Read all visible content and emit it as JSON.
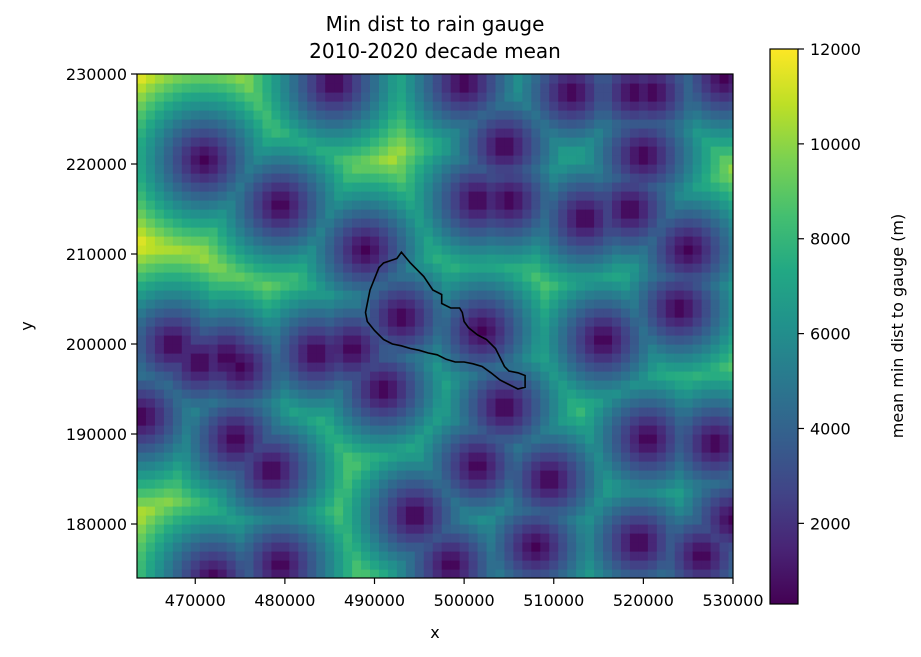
{
  "chart_data": {
    "type": "heatmap",
    "title": "Min dist to rain gauge",
    "subtitle": "2010-2020 decade mean",
    "xlabel": "x",
    "ylabel": "y",
    "xlim": [
      463500,
      530000
    ],
    "ylim": [
      174000,
      230000
    ],
    "xticks": [
      470000,
      480000,
      490000,
      500000,
      510000,
      520000,
      530000
    ],
    "yticks": [
      180000,
      190000,
      200000,
      210000,
      220000,
      230000
    ],
    "colorbar": {
      "label": "mean min dist to gauge (m)",
      "range": [
        300,
        12000
      ],
      "ticks": [
        2000,
        4000,
        6000,
        8000,
        10000,
        12000
      ],
      "colormap": "viridis"
    },
    "grid": false,
    "cell_size": 1000,
    "gauges": [
      [
        471000,
        220500
      ],
      [
        485500,
        229000
      ],
      [
        500000,
        229000
      ],
      [
        512000,
        228000
      ],
      [
        519000,
        228000
      ],
      [
        521000,
        228000
      ],
      [
        529000,
        229500
      ],
      [
        479500,
        215500
      ],
      [
        501500,
        216000
      ],
      [
        504500,
        222000
      ],
      [
        505000,
        216000
      ],
      [
        513500,
        214000
      ],
      [
        518500,
        215000
      ],
      [
        520000,
        221000
      ],
      [
        489000,
        210500
      ],
      [
        525000,
        210500
      ],
      [
        524000,
        204000
      ],
      [
        515500,
        200500
      ],
      [
        502000,
        201500
      ],
      [
        493000,
        203000
      ],
      [
        467500,
        200000
      ],
      [
        470500,
        198000
      ],
      [
        473500,
        198500
      ],
      [
        475000,
        197500
      ],
      [
        483500,
        199000
      ],
      [
        487500,
        199500
      ],
      [
        491000,
        195000
      ],
      [
        504500,
        193000
      ],
      [
        464000,
        192000
      ],
      [
        474500,
        189500
      ],
      [
        478500,
        186000
      ],
      [
        501500,
        186500
      ],
      [
        509500,
        185000
      ],
      [
        520500,
        189500
      ],
      [
        528000,
        189000
      ],
      [
        530000,
        180500
      ],
      [
        494500,
        181000
      ],
      [
        479500,
        175500
      ],
      [
        472000,
        174000
      ],
      [
        498500,
        175500
      ],
      [
        508000,
        177500
      ],
      [
        519500,
        178000
      ],
      [
        526500,
        176500
      ]
    ],
    "catchment_outline": [
      [
        489500,
        206000
      ],
      [
        490500,
        208500
      ],
      [
        491000,
        209000
      ],
      [
        492500,
        209500
      ],
      [
        493000,
        210200
      ],
      [
        494000,
        209000
      ],
      [
        495500,
        207500
      ],
      [
        496500,
        206000
      ],
      [
        497500,
        205500
      ],
      [
        497500,
        204500
      ],
      [
        498500,
        204000
      ],
      [
        499500,
        204000
      ],
      [
        499800,
        203500
      ],
      [
        500000,
        202500
      ],
      [
        500500,
        201800
      ],
      [
        501500,
        201000
      ],
      [
        502500,
        200500
      ],
      [
        503500,
        199500
      ],
      [
        504000,
        198500
      ],
      [
        504500,
        197500
      ],
      [
        505000,
        197000
      ],
      [
        506000,
        196800
      ],
      [
        506800,
        196500
      ],
      [
        506800,
        195200
      ],
      [
        506000,
        195000
      ],
      [
        505000,
        195500
      ],
      [
        504000,
        196000
      ],
      [
        503000,
        196800
      ],
      [
        502000,
        197500
      ],
      [
        501000,
        197800
      ],
      [
        500000,
        198000
      ],
      [
        499000,
        198000
      ],
      [
        498000,
        198300
      ],
      [
        497000,
        198800
      ],
      [
        496000,
        199000
      ],
      [
        495000,
        199300
      ],
      [
        494000,
        199500
      ],
      [
        493000,
        199800
      ],
      [
        492000,
        200000
      ],
      [
        491000,
        200500
      ],
      [
        490000,
        201500
      ],
      [
        489200,
        202500
      ],
      [
        489000,
        203500
      ],
      [
        489200,
        204500
      ],
      [
        489500,
        206000
      ]
    ]
  }
}
